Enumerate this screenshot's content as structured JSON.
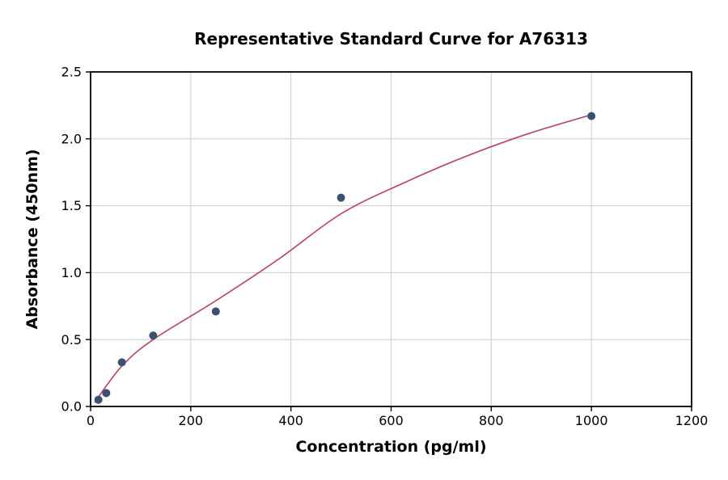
{
  "page": {
    "background": "#ffffff"
  },
  "chart_data": {
    "type": "scatter",
    "title": "Representative Standard Curve for A76313",
    "xlabel": "Concentration (pg/ml)",
    "ylabel": "Absorbance (450nm)",
    "xlim": [
      0,
      1200
    ],
    "ylim": [
      0,
      2.5
    ],
    "xticks": [
      0,
      200,
      400,
      600,
      800,
      1000,
      1200
    ],
    "yticks": [
      0.0,
      0.5,
      1.0,
      1.5,
      2.0,
      2.5
    ],
    "ytick_decimals": 1,
    "grid": true,
    "grid_color": "#cccccc",
    "axis_color": "#000000",
    "legend": null,
    "series": [
      {
        "name": "fitted-curve",
        "type": "line",
        "color": "#b9486e",
        "width": 1.7,
        "points": [
          [
            8,
            0.03
          ],
          [
            62,
            0.3
          ],
          [
            125,
            0.5
          ],
          [
            250,
            0.79
          ],
          [
            375,
            1.1
          ],
          [
            500,
            1.44
          ],
          [
            625,
            1.67
          ],
          [
            750,
            1.87
          ],
          [
            875,
            2.04
          ],
          [
            1000,
            2.18
          ]
        ]
      },
      {
        "name": "standard-points",
        "type": "scatter",
        "color": "#3a516f",
        "marker_radius": 5,
        "points": [
          [
            15.6,
            0.05
          ],
          [
            31.25,
            0.1
          ],
          [
            62.5,
            0.33
          ],
          [
            125,
            0.53
          ],
          [
            250,
            0.71
          ],
          [
            500,
            1.56
          ],
          [
            1000,
            2.17
          ]
        ]
      }
    ]
  }
}
